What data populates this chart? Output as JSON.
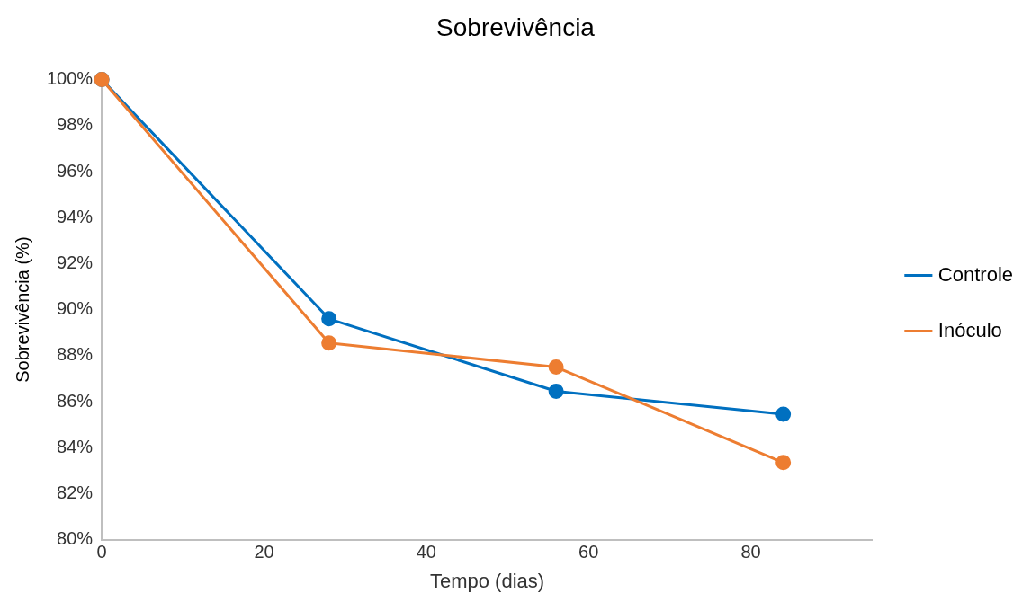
{
  "chart_data": {
    "type": "line",
    "title": "Sobrevivência",
    "xlabel": "Tempo (dias)",
    "ylabel": "Sobrevivência (%)",
    "x": [
      0,
      28,
      56,
      84
    ],
    "series": [
      {
        "name": "Controle",
        "color": "#0070c0",
        "values": [
          100,
          89.6,
          86.45,
          85.45
        ]
      },
      {
        "name": "Inóculo",
        "color": "#ed7d31",
        "values": [
          100,
          88.55,
          87.5,
          83.35
        ]
      }
    ],
    "xlim": [
      0,
      95
    ],
    "xticks": [
      0,
      20,
      40,
      60,
      80
    ],
    "ylim": [
      80,
      100
    ],
    "yticks": [
      {
        "value": 80,
        "label": "80%"
      },
      {
        "value": 82,
        "label": "82%"
      },
      {
        "value": 84,
        "label": "84%"
      },
      {
        "value": 86,
        "label": "86%"
      },
      {
        "value": 88,
        "label": "88%"
      },
      {
        "value": 90,
        "label": "90%"
      },
      {
        "value": 92,
        "label": "92%"
      },
      {
        "value": 94,
        "label": "94%"
      },
      {
        "value": 96,
        "label": "96%"
      },
      {
        "value": 98,
        "label": "98%"
      },
      {
        "value": 100,
        "label": "100%"
      }
    ],
    "grid": false,
    "legend": "right",
    "marker": "circle",
    "line_style": "solid"
  }
}
